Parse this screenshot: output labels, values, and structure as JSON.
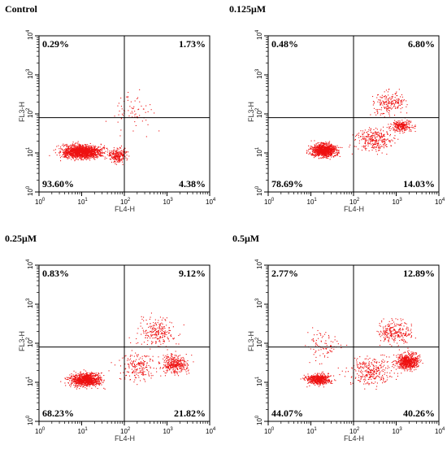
{
  "chart_data": [
    {
      "type": "scatter",
      "title": "Control",
      "xlabel": "FL4-H",
      "ylabel": "FL3-H",
      "xscale": "log",
      "yscale": "log",
      "xlim": [
        1,
        10000
      ],
      "ylim": [
        1,
        10000
      ],
      "gate": {
        "x": 100,
        "y": 80
      },
      "quadrants": {
        "upper_left": "0.29%",
        "upper_right": "1.73%",
        "lower_left": "93.60%",
        "lower_right": "4.38%"
      },
      "clusters": [
        {
          "x": 10,
          "y": 11,
          "sx_dec": 0.45,
          "sy_dec": 0.17,
          "n": 1500
        },
        {
          "x": 70,
          "y": 9,
          "sx_dec": 0.2,
          "sy_dec": 0.18,
          "n": 250
        },
        {
          "x": 150,
          "y": 120,
          "sx_dec": 0.45,
          "sy_dec": 0.5,
          "n": 70
        }
      ]
    },
    {
      "type": "scatter",
      "title": "0.125μM",
      "xlabel": "FL4-H",
      "ylabel": "FL3-H",
      "xscale": "log",
      "yscale": "log",
      "xlim": [
        1,
        10000
      ],
      "ylim": [
        1,
        10000
      ],
      "gate": {
        "x": 100,
        "y": 80
      },
      "quadrants": {
        "upper_left": "0.48%",
        "upper_right": "6.80%",
        "lower_left": "78.69%",
        "lower_right": "14.03%"
      },
      "clusters": [
        {
          "x": 20,
          "y": 12,
          "sx_dec": 0.28,
          "sy_dec": 0.16,
          "n": 1000
        },
        {
          "x": 300,
          "y": 22,
          "sx_dec": 0.45,
          "sy_dec": 0.28,
          "n": 300
        },
        {
          "x": 1300,
          "y": 50,
          "sx_dec": 0.25,
          "sy_dec": 0.15,
          "n": 250
        },
        {
          "x": 700,
          "y": 200,
          "sx_dec": 0.4,
          "sy_dec": 0.3,
          "n": 200
        }
      ]
    },
    {
      "type": "scatter",
      "title": "0.25μM",
      "xlabel": "FL4-H",
      "ylabel": "FL3-H",
      "xscale": "log",
      "yscale": "log",
      "xlim": [
        1,
        10000
      ],
      "ylim": [
        1,
        10000
      ],
      "gate": {
        "x": 100,
        "y": 80
      },
      "quadrants": {
        "upper_left": "0.83%",
        "upper_right": "9.12%",
        "lower_left": "68.23%",
        "lower_right": "21.82%"
      },
      "clusters": [
        {
          "x": 12,
          "y": 12,
          "sx_dec": 0.35,
          "sy_dec": 0.17,
          "n": 950
        },
        {
          "x": 1500,
          "y": 30,
          "sx_dec": 0.3,
          "sy_dec": 0.25,
          "n": 350
        },
        {
          "x": 200,
          "y": 25,
          "sx_dec": 0.45,
          "sy_dec": 0.35,
          "n": 200
        },
        {
          "x": 600,
          "y": 200,
          "sx_dec": 0.45,
          "sy_dec": 0.35,
          "n": 230
        }
      ]
    },
    {
      "type": "scatter",
      "title": "0.5μM",
      "xlabel": "FL4-H",
      "ylabel": "FL3-H",
      "xscale": "log",
      "yscale": "log",
      "xlim": [
        1,
        10000
      ],
      "ylim": [
        1,
        10000
      ],
      "gate": {
        "x": 100,
        "y": 80
      },
      "quadrants": {
        "upper_left": "2.77%",
        "upper_right": "12.89%",
        "lower_left": "44.07%",
        "lower_right": "40.26%"
      },
      "clusters": [
        {
          "x": 15,
          "y": 12,
          "sx_dec": 0.28,
          "sy_dec": 0.13,
          "n": 550
        },
        {
          "x": 1800,
          "y": 35,
          "sx_dec": 0.25,
          "sy_dec": 0.2,
          "n": 650
        },
        {
          "x": 250,
          "y": 20,
          "sx_dec": 0.5,
          "sy_dec": 0.35,
          "n": 300
        },
        {
          "x": 900,
          "y": 200,
          "sx_dec": 0.4,
          "sy_dec": 0.3,
          "n": 260
        },
        {
          "x": 20,
          "y": 100,
          "sx_dec": 0.4,
          "sy_dec": 0.4,
          "n": 90
        }
      ]
    }
  ],
  "axes": {
    "tick_base": "10",
    "tick_exponents": [
      "0",
      "1",
      "2",
      "3",
      "4"
    ]
  },
  "colors": {
    "dots": "#ee1111",
    "axes": "#000000"
  }
}
